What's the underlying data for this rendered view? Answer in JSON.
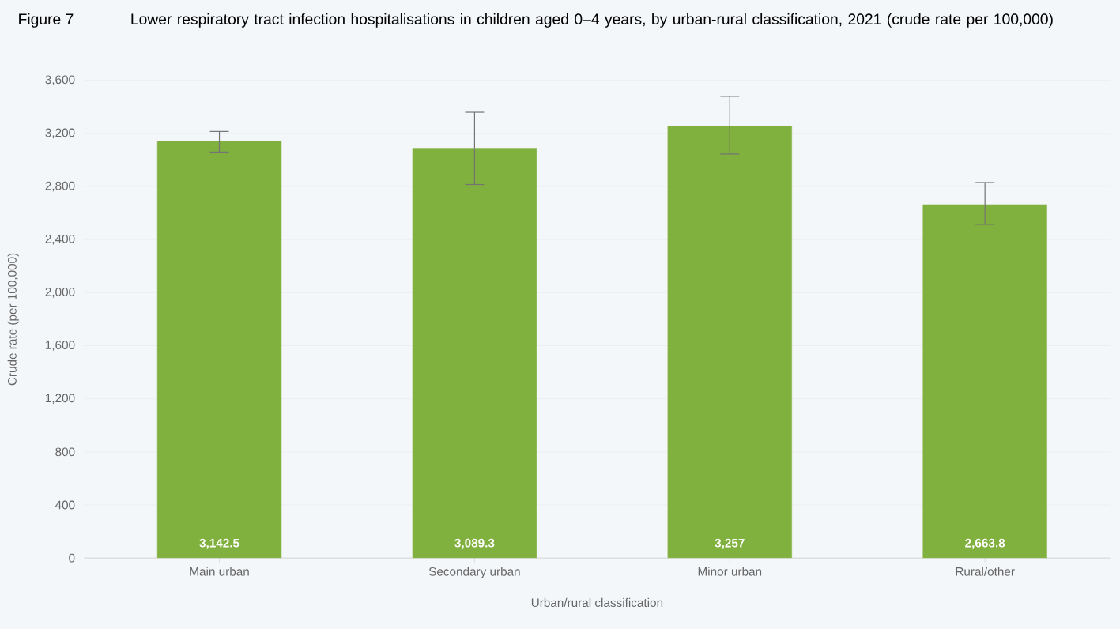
{
  "chart_data": {
    "type": "bar",
    "title": "Figure 7",
    "subtitle": "Lower respiratory tract infection hospitalisations in children aged 0–4 years, by urban-rural classification, 2021 (crude rate per 100,000)",
    "xlabel": "Urban/rural classification",
    "ylabel": "Crude rate (per 100,000)",
    "categories": [
      "Main urban",
      "Secondary urban",
      "Minor urban",
      "Rural/other"
    ],
    "values": [
      3142.5,
      3089.3,
      3257,
      2663.8
    ],
    "value_labels": [
      "3,142.5",
      "3,089.3",
      "3,257",
      "2,663.8"
    ],
    "errors": [
      [
        3060,
        3215
      ],
      [
        2815,
        3360
      ],
      [
        3045,
        3480
      ],
      [
        2515,
        2830
      ]
    ],
    "color": "#80b03e",
    "ylim": [
      0,
      3600
    ],
    "yticks": [
      {
        "value": 0,
        "label": "0"
      },
      {
        "value": 400,
        "label": "400"
      },
      {
        "value": 800,
        "label": "800"
      },
      {
        "value": 1200,
        "label": "1,200"
      },
      {
        "value": 1600,
        "label": "1,600"
      },
      {
        "value": 2000,
        "label": "2,000"
      },
      {
        "value": 2400,
        "label": "2,400"
      },
      {
        "value": 2800,
        "label": "2,800"
      },
      {
        "value": 3200,
        "label": "3,200"
      },
      {
        "value": 3600,
        "label": "3,600"
      }
    ],
    "grid": "y"
  }
}
